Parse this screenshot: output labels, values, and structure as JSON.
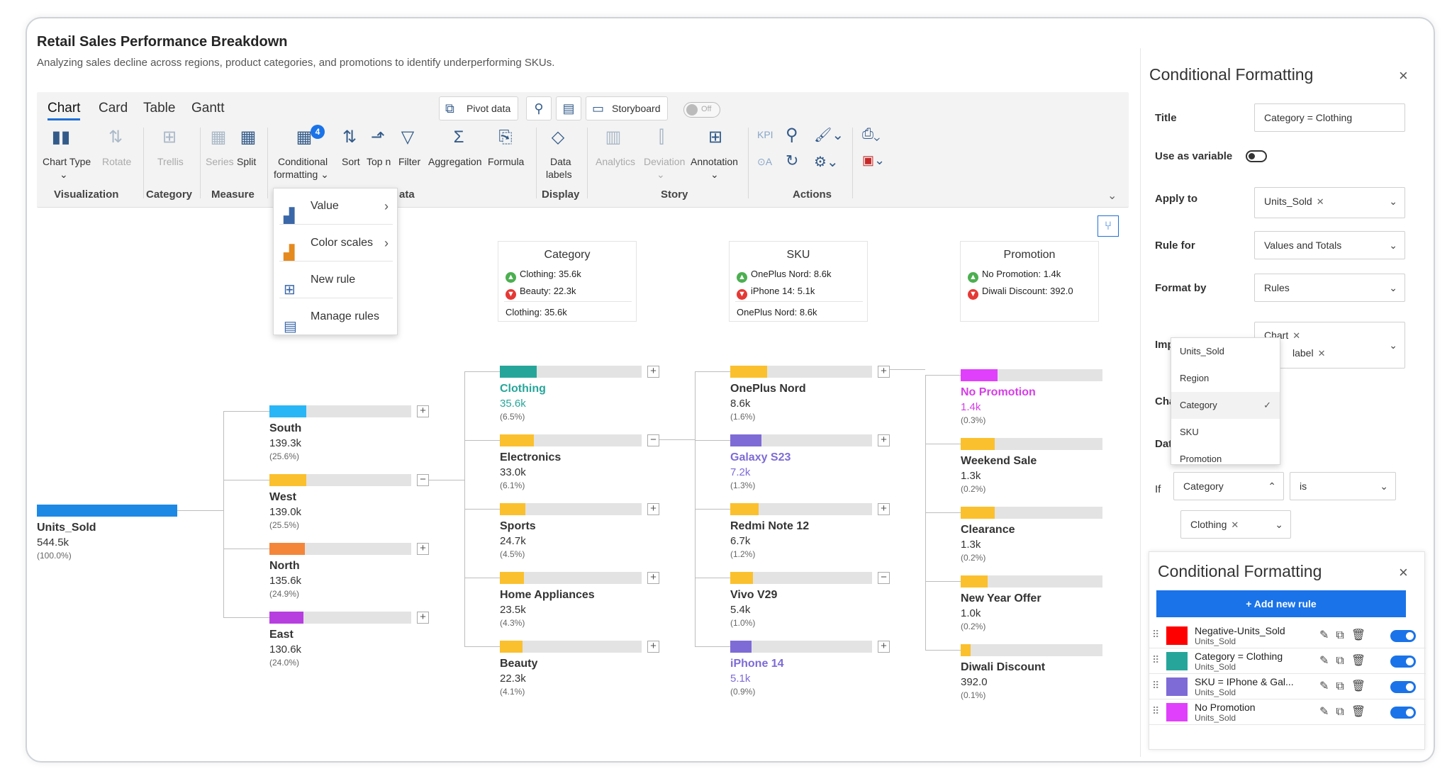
{
  "title": "Retail Sales Performance Breakdown",
  "subtitle": "Analyzing sales decline across regions, product categories, and promotions to identify underperforming SKUs.",
  "tabs": [
    "Chart",
    "Card",
    "Table",
    "Gantt"
  ],
  "toolbar": {
    "pivot": "Pivot data",
    "storyboard": "Storyboard",
    "off": "Off",
    "chart_type": "Chart Type",
    "rotate": "Rotate",
    "trellis": "Trellis",
    "series": "Series",
    "split": "Split",
    "cond1": "Conditional",
    "cond2": "formatting",
    "cond_badge": "4",
    "sort": "Sort",
    "topn": "Top n",
    "filter": "Filter",
    "aggregation": "Aggregation",
    "formula": "Formula",
    "datalabels1": "Data",
    "datalabels2": "labels",
    "analytics": "Analytics",
    "deviation": "Deviation",
    "annotation": "Annotation",
    "kpi": "KPI",
    "groups": {
      "visualization": "Visualization",
      "category": "Category",
      "measure": "Measure",
      "data": "ata",
      "display": "Display",
      "story": "Story",
      "actions": "Actions"
    }
  },
  "cf_menu": [
    "Value",
    "Color scales",
    "New rule",
    "Manage rules"
  ],
  "headers": [
    {
      "title": "Category",
      "good": "Clothing: 35.6k",
      "bad": "Beauty: 22.3k",
      "foot": "Clothing: 35.6k"
    },
    {
      "title": "SKU",
      "good": "OnePlus Nord: 8.6k",
      "bad": "iPhone 14: 5.1k",
      "foot": "OnePlus Nord: 8.6k"
    },
    {
      "title": "Promotion",
      "good": "No Promotion: 1.4k",
      "bad": "Diwali Discount: 392.0",
      "foot": ""
    }
  ],
  "root": {
    "name": "Units_Sold",
    "value": "544.5k",
    "pct": "(100.0%)",
    "color": "#1e88e5"
  },
  "regions": [
    {
      "name": "South",
      "value": "139.3k",
      "pct": "(25.6%)",
      "color": "#29b6f6",
      "fill": 0.26,
      "pm": "+"
    },
    {
      "name": "West",
      "value": "139.0k",
      "pct": "(25.5%)",
      "color": "#fbc02d",
      "fill": 0.26,
      "pm": "−"
    },
    {
      "name": "North",
      "value": "135.6k",
      "pct": "(24.9%)",
      "color": "#f4863a",
      "fill": 0.25,
      "pm": "+"
    },
    {
      "name": "East",
      "value": "130.6k",
      "pct": "(24.0%)",
      "color": "#b73fe0",
      "fill": 0.24,
      "pm": "+"
    }
  ],
  "categories": [
    {
      "name": "Clothing",
      "value": "35.6k",
      "pct": "(6.5%)",
      "color": "#26a69a",
      "fill": 0.26,
      "pm": "+",
      "tc": "#26a69a"
    },
    {
      "name": "Electronics",
      "value": "33.0k",
      "pct": "(6.1%)",
      "color": "#fbc02d",
      "fill": 0.24,
      "pm": "−",
      "tc": ""
    },
    {
      "name": "Sports",
      "value": "24.7k",
      "pct": "(4.5%)",
      "color": "#fbc02d",
      "fill": 0.18,
      "pm": "+",
      "tc": ""
    },
    {
      "name": "Home Appliances",
      "value": "23.5k",
      "pct": "(4.3%)",
      "color": "#fbc02d",
      "fill": 0.17,
      "pm": "+",
      "tc": ""
    },
    {
      "name": "Beauty",
      "value": "22.3k",
      "pct": "(4.1%)",
      "color": "#fbc02d",
      "fill": 0.16,
      "pm": "+",
      "tc": ""
    }
  ],
  "skus": [
    {
      "name": "OnePlus Nord",
      "value": "8.6k",
      "pct": "(1.6%)",
      "color": "#fbc02d",
      "fill": 0.26,
      "pm": "+",
      "tc": ""
    },
    {
      "name": "Galaxy S23",
      "value": "7.2k",
      "pct": "(1.3%)",
      "color": "#7e6bd6",
      "fill": 0.22,
      "pm": "+",
      "tc": "#7e6bd6"
    },
    {
      "name": "Redmi Note 12",
      "value": "6.7k",
      "pct": "(1.2%)",
      "color": "#fbc02d",
      "fill": 0.2,
      "pm": "+",
      "tc": ""
    },
    {
      "name": "Vivo V29",
      "value": "5.4k",
      "pct": "(1.0%)",
      "color": "#fbc02d",
      "fill": 0.16,
      "pm": "−",
      "tc": ""
    },
    {
      "name": "iPhone 14",
      "value": "5.1k",
      "pct": "(0.9%)",
      "color": "#7e6bd6",
      "fill": 0.15,
      "pm": "+",
      "tc": "#7e6bd6"
    }
  ],
  "promotions": [
    {
      "name": "No Promotion",
      "value": "1.4k",
      "pct": "(0.3%)",
      "color": "#e040fb",
      "fill": 0.26,
      "tc": "#d63de8"
    },
    {
      "name": "Weekend Sale",
      "value": "1.3k",
      "pct": "(0.2%)",
      "color": "#fbc02d",
      "fill": 0.24,
      "tc": ""
    },
    {
      "name": "Clearance",
      "value": "1.3k",
      "pct": "(0.2%)",
      "color": "#fbc02d",
      "fill": 0.24,
      "tc": ""
    },
    {
      "name": "New Year Offer",
      "value": "1.0k",
      "pct": "(0.2%)",
      "color": "#fbc02d",
      "fill": 0.19,
      "tc": ""
    },
    {
      "name": "Diwali Discount",
      "value": "392.0",
      "pct": "(0.1%)",
      "color": "#fbc02d",
      "fill": 0.07,
      "tc": ""
    }
  ],
  "panel": {
    "heading": "Conditional Formatting",
    "title_label": "Title",
    "title_value": "Category = Clothing",
    "use_var": "Use as variable",
    "apply_label": "Apply to",
    "apply_value": "Units_Sold",
    "rulefor_label": "Rule for",
    "rulefor_value": "Values and Totals",
    "formatby_label": "Format by",
    "formatby_value": "Rules",
    "impact_label": "Impa",
    "impact_tag1": "Chart",
    "impact_tag2": "label",
    "cha_label": "Char",
    "data_label": "Data",
    "if_label": "If",
    "if_field": "Category",
    "if_op": "is",
    "if_value": "Clothing"
  },
  "dd_options": [
    "Units_Sold",
    "Region",
    "Category",
    "SKU",
    "Promotion"
  ],
  "panel2": {
    "heading": "Conditional Formatting",
    "add": "+ Add new rule",
    "rules": [
      {
        "name": "Negative-Units_Sold",
        "sub": "Units_Sold",
        "color": "#ff0000"
      },
      {
        "name": "Category = Clothing",
        "sub": "Units_Sold",
        "color": "#26a69a"
      },
      {
        "name": "SKU = IPhone & Gal...",
        "sub": "Units_Sold",
        "color": "#7e6bd6"
      },
      {
        "name": "No Promotion",
        "sub": "Units_Sold",
        "color": "#e040fb"
      }
    ]
  }
}
